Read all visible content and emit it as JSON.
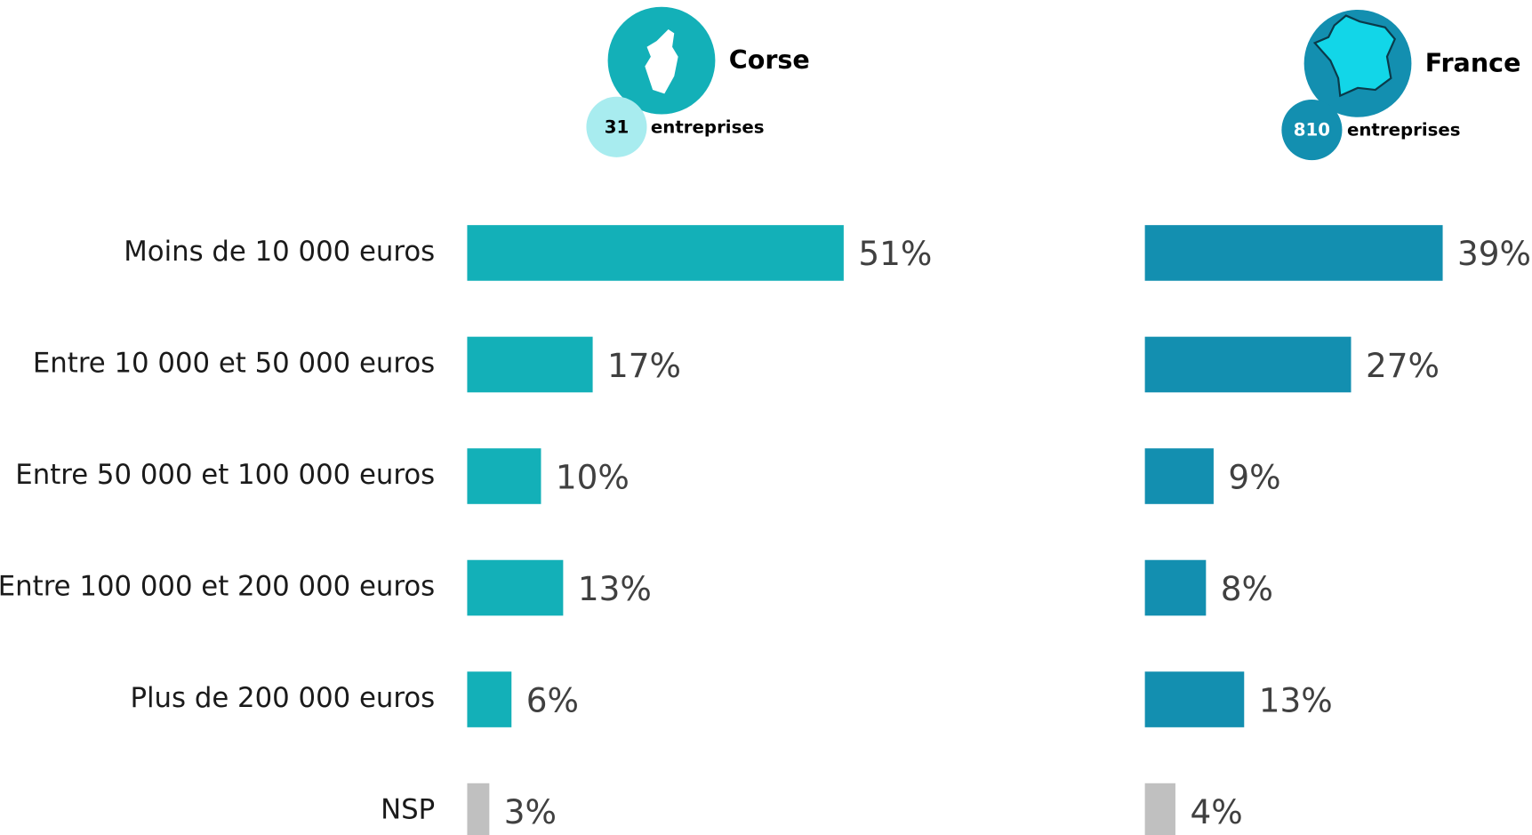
{
  "chart_data": [
    {
      "type": "bar",
      "orientation": "horizontal",
      "title": "Corse",
      "count": "31",
      "count_label": "entreprises",
      "categories": [
        "Moins de 10 000 euros",
        "Entre 10 000 et 50 000 euros",
        "Entre 50 000 et 100 000 euros",
        "Entre 100 000 et 200 000 euros",
        "Plus de 200 000 euros",
        "NSP"
      ],
      "values": [
        51,
        17,
        10,
        13,
        6,
        3
      ],
      "value_labels": [
        "51%",
        "17%",
        "10%",
        "13%",
        "6%",
        "3%"
      ],
      "colors": [
        "#13b0b8",
        "#13b0b8",
        "#13b0b8",
        "#13b0b8",
        "#13b0b8",
        "#c0c0c0"
      ]
    },
    {
      "type": "bar",
      "orientation": "horizontal",
      "title": "France",
      "count": "810",
      "count_label": "entreprises",
      "values": [
        39,
        27,
        9,
        8,
        13,
        4
      ],
      "value_labels": [
        "39%",
        "27%",
        "9%",
        "8%",
        "13%",
        "4%"
      ],
      "colors": [
        "#138fb0",
        "#138fb0",
        "#138fb0",
        "#138fb0",
        "#138fb0",
        "#c0c0c0"
      ]
    }
  ]
}
